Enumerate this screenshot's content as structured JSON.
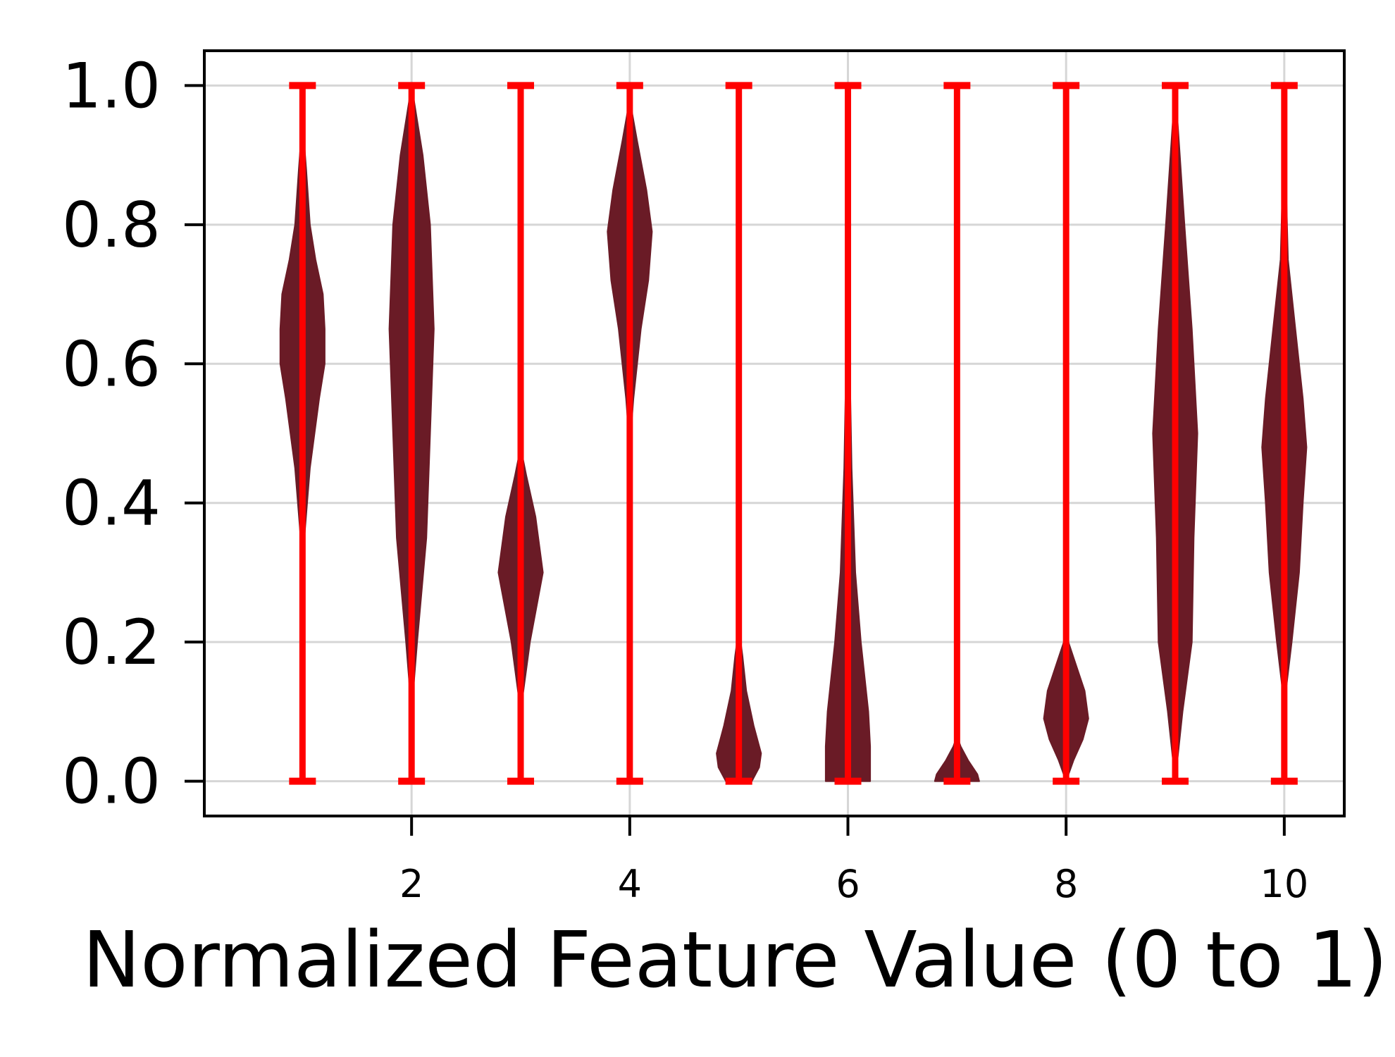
{
  "colors": {
    "violin_fill": "#6a1b26",
    "whisker": "#ff0000",
    "grid": "#d6d6d6",
    "axes": "#000000"
  },
  "chart_data": {
    "type": "violin",
    "title": "",
    "xlabel": "Normalized Feature Value (0 to 1)",
    "ylabel": "",
    "xlim": [
      0.1,
      10.55
    ],
    "ylim": [
      -0.05,
      1.05
    ],
    "grid": true,
    "x_ticks": [
      2,
      4,
      6,
      8,
      10
    ],
    "y_ticks": [
      0.0,
      0.2,
      0.4,
      0.6,
      0.8,
      1.0
    ],
    "y_tick_labels": [
      "0.0",
      "0.2",
      "0.4",
      "0.6",
      "0.8",
      "1.0"
    ],
    "x_tick_labels": [
      "2",
      "4",
      "6",
      "8",
      "10"
    ],
    "series": [
      {
        "position": 1,
        "min": 0.0,
        "max": 1.0,
        "profile": [
          [
            0.27,
            0
          ],
          [
            0.35,
            0.01
          ],
          [
            0.45,
            0.04
          ],
          [
            0.55,
            0.09
          ],
          [
            0.6,
            0.12
          ],
          [
            0.65,
            0.12
          ],
          [
            0.7,
            0.11
          ],
          [
            0.75,
            0.07
          ],
          [
            0.8,
            0.04
          ],
          [
            0.88,
            0.02
          ],
          [
            0.95,
            0
          ]
        ]
      },
      {
        "position": 2,
        "min": 0.0,
        "max": 1.0,
        "profile": [
          [
            0.1,
            0
          ],
          [
            0.2,
            0.03
          ],
          [
            0.35,
            0.08
          ],
          [
            0.5,
            0.1
          ],
          [
            0.65,
            0.12
          ],
          [
            0.8,
            0.1
          ],
          [
            0.9,
            0.06
          ],
          [
            1.0,
            0
          ]
        ]
      },
      {
        "position": 3,
        "min": 0.0,
        "max": 1.0,
        "profile": [
          [
            0.05,
            0
          ],
          [
            0.12,
            0.01
          ],
          [
            0.2,
            0.05
          ],
          [
            0.3,
            0.12
          ],
          [
            0.38,
            0.08
          ],
          [
            0.44,
            0.03
          ],
          [
            0.48,
            0
          ]
        ]
      },
      {
        "position": 4,
        "min": 0.0,
        "max": 1.0,
        "profile": [
          [
            0.48,
            0
          ],
          [
            0.55,
            0.02
          ],
          [
            0.65,
            0.06
          ],
          [
            0.72,
            0.1
          ],
          [
            0.79,
            0.12
          ],
          [
            0.85,
            0.09
          ],
          [
            0.92,
            0.04
          ],
          [
            0.98,
            0
          ]
        ]
      },
      {
        "position": 5,
        "min": 0.0,
        "max": 1.0,
        "profile": [
          [
            0.0,
            0.07
          ],
          [
            0.02,
            0.11
          ],
          [
            0.04,
            0.12
          ],
          [
            0.08,
            0.08
          ],
          [
            0.13,
            0.04
          ],
          [
            0.18,
            0.02
          ],
          [
            0.22,
            0
          ]
        ]
      },
      {
        "position": 6,
        "min": 0.0,
        "max": 1.0,
        "profile": [
          [
            0.0,
            0.12
          ],
          [
            0.05,
            0.12
          ],
          [
            0.1,
            0.11
          ],
          [
            0.2,
            0.07
          ],
          [
            0.3,
            0.04
          ],
          [
            0.45,
            0.02
          ],
          [
            0.6,
            0.01
          ],
          [
            0.8,
            0.005
          ],
          [
            0.98,
            0
          ]
        ]
      },
      {
        "position": 7,
        "min": 0.0,
        "max": 1.0,
        "profile": [
          [
            0.0,
            0.12
          ],
          [
            0.01,
            0.11
          ],
          [
            0.03,
            0.06
          ],
          [
            0.05,
            0.02
          ],
          [
            0.065,
            0
          ]
        ]
      },
      {
        "position": 8,
        "min": 0.0,
        "max": 1.0,
        "profile": [
          [
            0.0,
            0
          ],
          [
            0.03,
            0.04
          ],
          [
            0.06,
            0.09
          ],
          [
            0.09,
            0.12
          ],
          [
            0.13,
            0.1
          ],
          [
            0.17,
            0.05
          ],
          [
            0.21,
            0
          ]
        ]
      },
      {
        "position": 9,
        "min": 0.0,
        "max": 1.0,
        "profile": [
          [
            0.0,
            0
          ],
          [
            0.1,
            0.04
          ],
          [
            0.2,
            0.09
          ],
          [
            0.35,
            0.1
          ],
          [
            0.5,
            0.12
          ],
          [
            0.65,
            0.09
          ],
          [
            0.8,
            0.05
          ],
          [
            0.92,
            0.02
          ],
          [
            1.0,
            0
          ]
        ]
      },
      {
        "position": 10,
        "min": 0.0,
        "max": 1.0,
        "profile": [
          [
            0.11,
            0
          ],
          [
            0.2,
            0.04
          ],
          [
            0.3,
            0.08
          ],
          [
            0.4,
            0.1
          ],
          [
            0.48,
            0.12
          ],
          [
            0.55,
            0.1
          ],
          [
            0.65,
            0.06
          ],
          [
            0.75,
            0.02
          ],
          [
            0.85,
            0.01
          ],
          [
            0.92,
            0
          ]
        ]
      }
    ]
  }
}
